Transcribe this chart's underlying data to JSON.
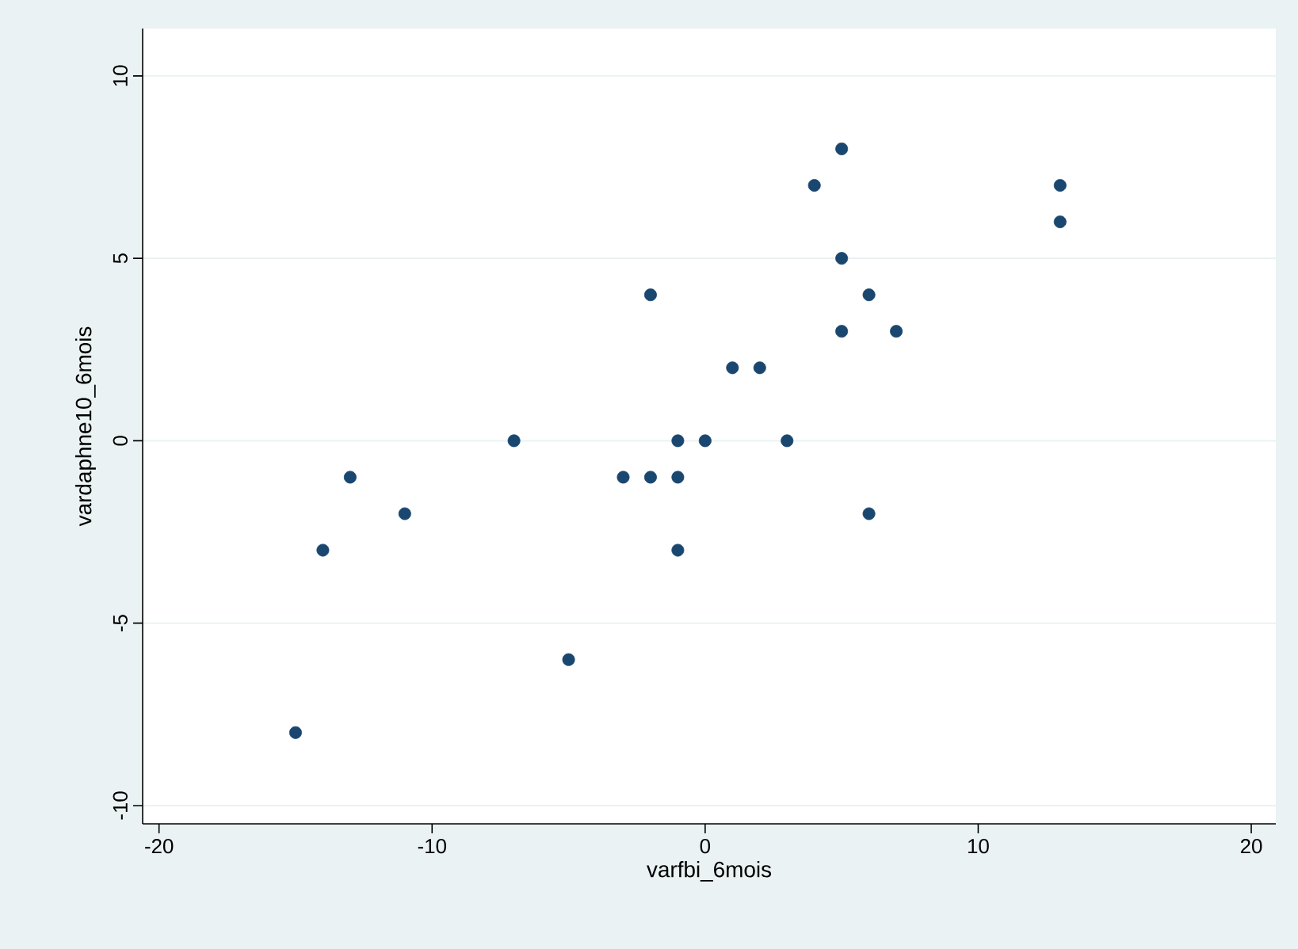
{
  "chart_data": {
    "type": "scatter",
    "xlabel": "varfbi_6mois",
    "ylabel": "vardaphne10_6mois",
    "x": [
      -15,
      -14,
      -13,
      -11,
      -7,
      -5,
      -3,
      -2,
      -2,
      -1,
      -1,
      -1,
      0,
      1,
      2,
      3,
      4,
      5,
      5,
      5,
      6,
      6,
      7,
      13,
      13
    ],
    "values": [
      -8,
      -3,
      -1,
      -2,
      0,
      -6,
      -1,
      4,
      -1,
      0,
      -1,
      -3,
      0,
      2,
      2,
      0,
      7,
      8,
      5,
      3,
      4,
      -2,
      3,
      7,
      6
    ],
    "color": "#1a476f",
    "marker": "circle",
    "grid": "y",
    "xlim": [
      -20.6,
      20.9
    ],
    "ylim": [
      -10.5,
      11.3
    ],
    "xticks": [
      -20,
      -10,
      0,
      10,
      20
    ],
    "yticks": [
      -10,
      -5,
      0,
      5,
      10
    ]
  }
}
